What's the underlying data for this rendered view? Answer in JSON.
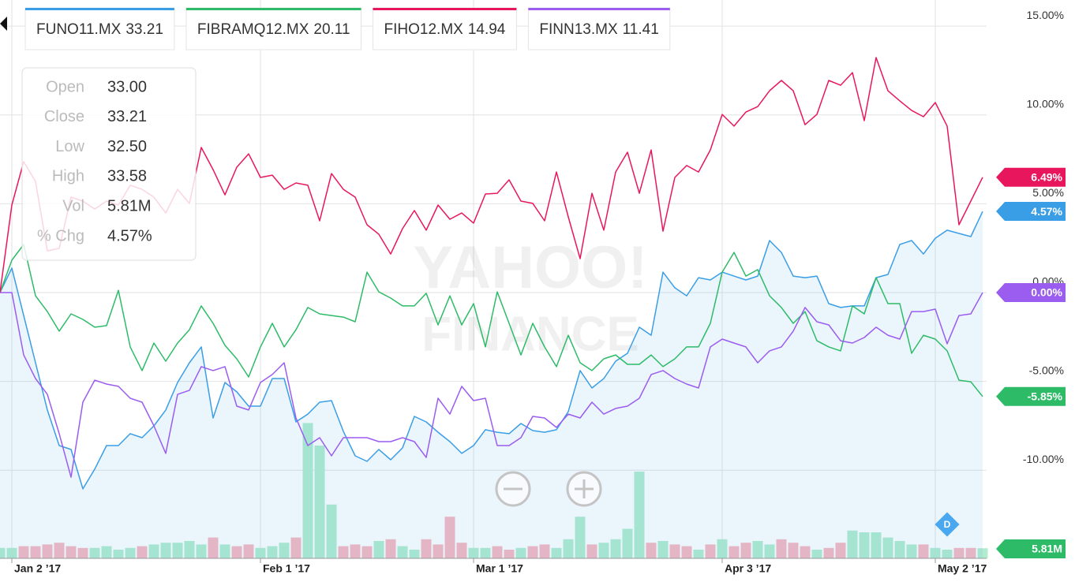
{
  "chart_data": {
    "type": "line",
    "x": [
      0,
      1,
      2,
      3,
      4,
      5,
      6,
      7,
      8,
      9,
      10,
      11,
      12,
      13,
      14,
      15,
      16,
      17,
      18,
      19,
      20,
      21,
      22,
      23,
      24,
      25,
      26,
      27,
      28,
      29,
      30,
      31,
      32,
      33,
      34,
      35,
      36,
      37,
      38,
      39,
      40,
      41,
      42,
      43,
      44,
      45,
      46,
      47,
      48,
      49,
      50,
      51,
      52,
      53,
      54,
      55,
      56,
      57,
      58,
      59,
      60,
      61,
      62,
      63,
      64,
      65,
      66,
      67,
      68,
      69,
      70,
      71,
      72,
      73,
      74,
      75,
      76,
      77,
      78,
      79,
      80,
      81,
      82,
      83
    ],
    "xlim": [
      0,
      83.2
    ],
    "xticks": [
      {
        "value": 1,
        "label": "Jan 2 ’17"
      },
      {
        "value": 22,
        "label": "Feb 1 ’17"
      },
      {
        "value": 40,
        "label": "Mar 1 ’17"
      },
      {
        "value": 61,
        "label": "Apr 3 ’17"
      },
      {
        "value": 79,
        "label": "May 2 ’17"
      }
    ],
    "ylim": [
      -14.96,
      16.47
    ],
    "yticks": [
      {
        "value": 15,
        "label": "15.00%"
      },
      {
        "value": 10,
        "label": "10.00%"
      },
      {
        "value": 5,
        "label": "5.00%"
      },
      {
        "value": 0,
        "label": "0.00%"
      },
      {
        "value": -5,
        "label": "-5.00%"
      },
      {
        "value": -10,
        "label": "-10.00%"
      }
    ],
    "grid": true,
    "series": [
      {
        "name": "FUNO11.MX",
        "price": 33.21,
        "color": "#3a9ee6",
        "area": true,
        "end_label": "4.57%",
        "values": [
          0,
          1.38,
          -1.29,
          -3.95,
          -6.61,
          -8.61,
          -8.83,
          -11.05,
          -9.94,
          -8.61,
          -8.61,
          -7.94,
          -8.17,
          -7.5,
          -6.61,
          -5.06,
          -3.95,
          -3.06,
          -7.06,
          -5.06,
          -5.59,
          -6.39,
          -6.39,
          -4.84,
          -4.84,
          -7.28,
          -6.84,
          -6.17,
          -6.08,
          -7.81,
          -9.19,
          -9.5,
          -8.83,
          -9.41,
          -8.74,
          -6.97,
          -7.28,
          -7.86,
          -8.39,
          -9.05,
          -8.61,
          -7.72,
          -7.86,
          -7.94,
          -7.37,
          -7.77,
          -7.86,
          -7.72,
          -6.7,
          -4.39,
          -5.37,
          -4.84,
          -3.86,
          -3.42,
          -1.95,
          -2.4,
          1.15,
          0.27,
          -0.18,
          0.84,
          0.71,
          1.15,
          0.93,
          0.71,
          0.93,
          2.93,
          2.26,
          0.93,
          0.84,
          0.93,
          -0.62,
          -0.84,
          -0.75,
          -0.75,
          0.84,
          1.02,
          2.71,
          2.93,
          2.17,
          3.06,
          3.51,
          3.33,
          3.15,
          4.57
        ]
      },
      {
        "name": "FIBRAMQ12.MX",
        "price": 20.11,
        "color": "#2dbb68",
        "end_label": "-5.85%",
        "values": [
          0,
          1.82,
          2.71,
          -0.18,
          -1.07,
          -2.17,
          -1.2,
          -1.51,
          -1.95,
          -1.86,
          0.13,
          -3.06,
          -4.39,
          -2.84,
          -3.86,
          -2.84,
          -2.09,
          -0.75,
          -1.73,
          -2.97,
          -3.73,
          -4.75,
          -3.06,
          -1.73,
          -3.06,
          -2.09,
          -0.84,
          -1.2,
          -1.29,
          -1.38,
          -1.64,
          1.15,
          0.04,
          -0.31,
          -0.75,
          -0.75,
          -0.04,
          -1.82,
          -0.18,
          -1.82,
          -0.62,
          -3.06,
          0.04,
          -1.73,
          -3.51,
          -1.73,
          -3.06,
          -4.17,
          -2.4,
          -3.95,
          -4.39,
          -3.73,
          -3.51,
          -4.04,
          -4.04,
          -3.51,
          -4.17,
          -3.73,
          -3.06,
          -3.06,
          -1.73,
          1.15,
          2.26,
          0.93,
          1.29,
          -0.18,
          -0.84,
          -1.73,
          -1.07,
          -2.71,
          -3.06,
          -3.28,
          -0.75,
          -1.2,
          0.84,
          -0.62,
          -0.62,
          -3.42,
          -2.4,
          -2.62,
          -3.28,
          -4.93,
          -5.02,
          -5.85
        ]
      },
      {
        "name": "FIHO12.MX",
        "price": 14.94,
        "color": "#e8175d",
        "end_label": "6.49%",
        "values": [
          0,
          4.93,
          7.37,
          6.26,
          2.35,
          2.49,
          5.37,
          5.15,
          4.7,
          5.15,
          4.93,
          6.04,
          5.81,
          5.37,
          4.48,
          5.81,
          5.02,
          8.17,
          6.92,
          5.5,
          7.06,
          7.81,
          6.48,
          6.61,
          5.81,
          6.17,
          6.04,
          4.04,
          6.7,
          5.81,
          5.37,
          3.82,
          3.28,
          2.17,
          3.6,
          4.62,
          3.51,
          4.93,
          4.13,
          4.48,
          3.91,
          5.55,
          5.59,
          6.35,
          5.15,
          5.02,
          4.04,
          6.79,
          4.26,
          1.91,
          5.59,
          3.51,
          6.79,
          7.9,
          5.59,
          8.03,
          3.46,
          6.48,
          7.15,
          6.79,
          8.03,
          10.03,
          9.37,
          10.16,
          10.47,
          11.36,
          11.94,
          11.36,
          9.45,
          10.03,
          11.94,
          11.67,
          12.38,
          9.68,
          13.23,
          11.36,
          10.79,
          10.25,
          9.9,
          10.7,
          9.37,
          3.82,
          5.15,
          6.49
        ]
      },
      {
        "name": "FINN13.MX",
        "price": 11.41,
        "color": "#9b5cf0",
        "end_label": "0.00%",
        "values": [
          0,
          0,
          -3.51,
          -4.84,
          -5.73,
          -7.94,
          -10.39,
          -6.17,
          -4.93,
          -5.15,
          -5.28,
          -5.95,
          -6.17,
          -7.5,
          -9.05,
          -5.73,
          -5.5,
          -4.17,
          -4.39,
          -4.17,
          -6.39,
          -6.61,
          -5.06,
          -4.61,
          -3.95,
          -7.06,
          -8.61,
          -8.17,
          -9.19,
          -8.17,
          -8.17,
          -8.17,
          -8.39,
          -8.39,
          -8.17,
          -8.39,
          -9.28,
          -5.95,
          -6.84,
          -5.28,
          -6.08,
          -5.95,
          -8.61,
          -8.61,
          -8.17,
          -6.97,
          -7.06,
          -7.59,
          -6.84,
          -7.06,
          -6.17,
          -6.84,
          -6.52,
          -6.39,
          -5.95,
          -4.61,
          -4.39,
          -4.84,
          -5.15,
          -5.37,
          -3.06,
          -2.62,
          -2.84,
          -3.06,
          -3.95,
          -3.28,
          -3.06,
          -2.17,
          -0.84,
          -1.64,
          -1.82,
          -2.71,
          -2.84,
          -2.53,
          -1.95,
          -2.4,
          -2.62,
          -1.07,
          -1.07,
          -0.93,
          -2.88,
          -1.29,
          -1.2,
          0
        ]
      }
    ],
    "volume": {
      "up_color": "#b2ecd0",
      "down_color": "#f8b8c2",
      "lim": [
        0,
        110
      ],
      "end_label": "5.81M",
      "label_color": "#2dbb68",
      "values": [
        6,
        6,
        7,
        7,
        8,
        9,
        7,
        6,
        6,
        7,
        5,
        6,
        7,
        8,
        9,
        9,
        10,
        8,
        12,
        8,
        7,
        8,
        6,
        7,
        9,
        12,
        78,
        65,
        31,
        7,
        8,
        7,
        10,
        11,
        7,
        5,
        11,
        8,
        24,
        9,
        6,
        6,
        7,
        5,
        6,
        7,
        8,
        6,
        11,
        24,
        8,
        9,
        11,
        17,
        50,
        9,
        10,
        8,
        7,
        5,
        8,
        11,
        7,
        9,
        10,
        8,
        11,
        9,
        7,
        5,
        6,
        9,
        16,
        15,
        15,
        12,
        10,
        8,
        8,
        6,
        5,
        6,
        6,
        5.81
      ]
    },
    "event_marker": {
      "label": "D",
      "x": 80
    },
    "watermark": [
      "YAHOO!",
      "FINANCE"
    ],
    "tooltip": {
      "rows": [
        {
          "label": "Open",
          "value": "33.00"
        },
        {
          "label": "Close",
          "value": "33.21"
        },
        {
          "label": "Low",
          "value": "32.50"
        },
        {
          "label": "High",
          "value": "33.58"
        },
        {
          "label": "Vol",
          "value": "5.81M"
        },
        {
          "label": "% Chg",
          "value": "4.57%"
        }
      ]
    }
  }
}
